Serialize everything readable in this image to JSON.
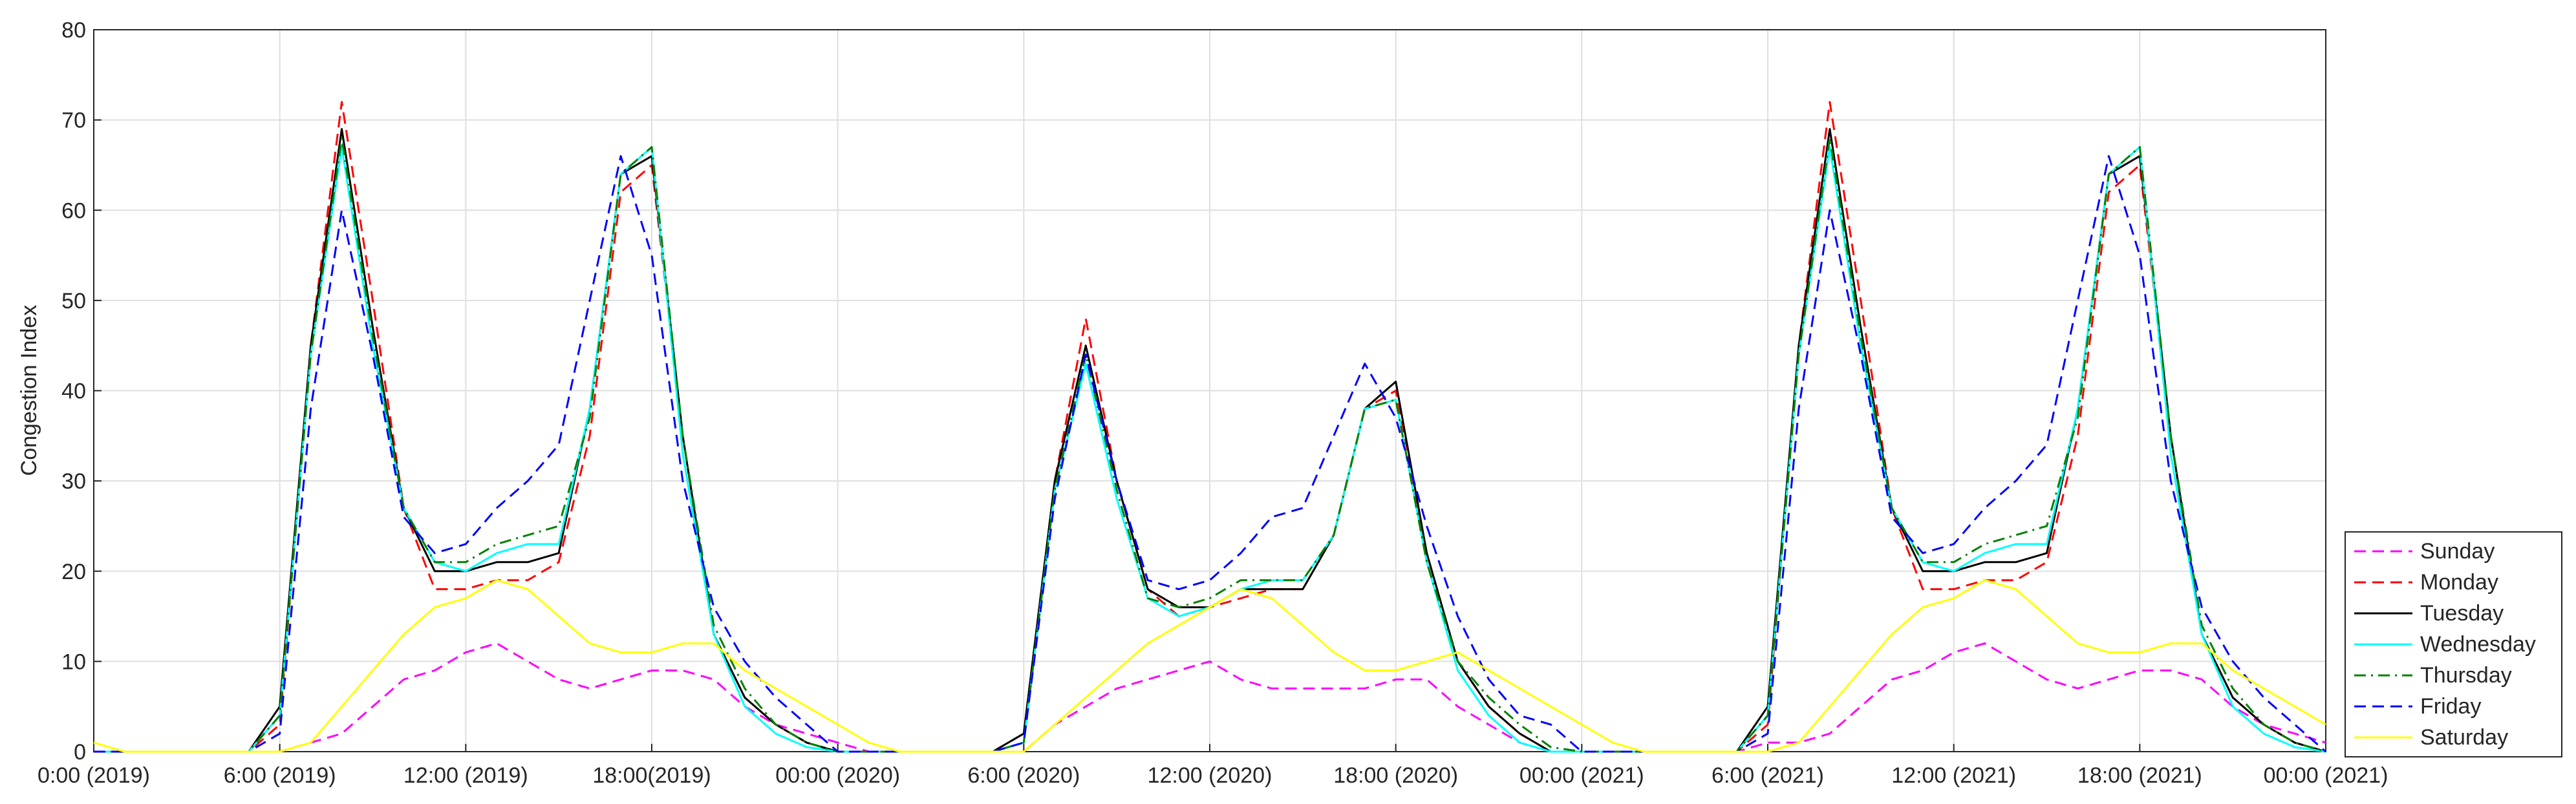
{
  "chart_data": {
    "type": "line",
    "ylabel": "Congestion Index",
    "x": [
      0,
      1,
      2,
      3,
      4,
      5,
      6,
      7,
      8,
      9,
      10,
      11,
      12,
      13,
      14,
      15,
      16,
      17,
      18,
      19,
      20,
      21,
      22,
      23,
      24,
      25,
      26,
      27,
      28,
      29,
      30,
      31,
      32,
      33,
      34,
      35,
      36,
      37,
      38,
      39,
      40,
      41,
      42,
      43,
      44,
      45,
      46,
      47,
      48,
      49,
      50,
      51,
      52,
      53,
      54,
      55,
      56,
      57,
      58,
      59,
      60,
      61,
      62,
      63,
      64,
      65,
      66,
      67,
      68,
      69,
      70,
      71,
      72
    ],
    "xlim": [
      0,
      72
    ],
    "xticks": [
      {
        "value": 0,
        "label": "0:00 (2019)"
      },
      {
        "value": 6,
        "label": "6:00 (2019)"
      },
      {
        "value": 12,
        "label": "12:00 (2019)"
      },
      {
        "value": 18,
        "label": "18:00(2019)"
      },
      {
        "value": 24,
        "label": "00:00 (2020)"
      },
      {
        "value": 30,
        "label": "6:00 (2020)"
      },
      {
        "value": 36,
        "label": "12:00 (2020)"
      },
      {
        "value": 42,
        "label": "18:00 (2020)"
      },
      {
        "value": 48,
        "label": "00:00 (2021)"
      },
      {
        "value": 54,
        "label": "6:00 (2021)"
      },
      {
        "value": 60,
        "label": "12:00 (2021)"
      },
      {
        "value": 66,
        "label": "18:00 (2021)"
      },
      {
        "value": 72,
        "label": "00:00 (2021)"
      }
    ],
    "ylim": [
      0,
      80
    ],
    "yticks": [
      0,
      10,
      20,
      30,
      40,
      50,
      60,
      70,
      80
    ],
    "grid": true,
    "legend": "lower right outside",
    "series": [
      {
        "name": "Sunday",
        "color": "#ff00ff",
        "linestyle": "dashed",
        "values": [
          0,
          0,
          0,
          0,
          0,
          0,
          0,
          1,
          2,
          5,
          8,
          9,
          11,
          12,
          10,
          8,
          7,
          8,
          9,
          9,
          8,
          5,
          3,
          2,
          1,
          0,
          0,
          0,
          0,
          0,
          0,
          3,
          5,
          7,
          8,
          9,
          10,
          8,
          7,
          7,
          7,
          7,
          8,
          8,
          5,
          3,
          1,
          0,
          0,
          0,
          0,
          0,
          0,
          0,
          1,
          1,
          2,
          5,
          8,
          9,
          11,
          12,
          10,
          8,
          7,
          8,
          9,
          9,
          8,
          5,
          3,
          2,
          1
        ]
      },
      {
        "name": "Monday",
        "color": "#ff0000",
        "linestyle": "dashed",
        "values": [
          0,
          0,
          0,
          0,
          0,
          0,
          3,
          45,
          72,
          50,
          27,
          18,
          18,
          19,
          19,
          21,
          35,
          62,
          65,
          35,
          13,
          6,
          3,
          1,
          0,
          0,
          0,
          0,
          0,
          0,
          2,
          30,
          48,
          30,
          18,
          15,
          16,
          17,
          18,
          18,
          24,
          38,
          40,
          22,
          10,
          5,
          2,
          0,
          0,
          0,
          0,
          0,
          0,
          0,
          3,
          45,
          72,
          50,
          27,
          18,
          18,
          19,
          19,
          21,
          35,
          62,
          65,
          35,
          13,
          6,
          3,
          1,
          0
        ]
      },
      {
        "name": "Tuesday",
        "color": "#000000",
        "linestyle": "solid",
        "values": [
          0,
          0,
          0,
          0,
          0,
          0,
          5,
          45,
          69,
          47,
          27,
          20,
          20,
          21,
          21,
          22,
          38,
          64,
          66,
          35,
          13,
          6,
          3,
          1,
          0,
          0,
          0,
          0,
          0,
          0,
          2,
          30,
          45,
          30,
          18,
          16,
          16,
          18,
          18,
          18,
          24,
          38,
          41,
          22,
          10,
          5,
          2,
          0,
          0,
          0,
          0,
          0,
          0,
          0,
          5,
          45,
          69,
          47,
          27,
          20,
          20,
          21,
          21,
          22,
          38,
          64,
          66,
          35,
          13,
          6,
          3,
          1,
          0
        ]
      },
      {
        "name": "Wednesday",
        "color": "#00ffff",
        "linestyle": "solid",
        "values": [
          0,
          0,
          0,
          0,
          0,
          0,
          4,
          44,
          67,
          45,
          27,
          21,
          20,
          22,
          23,
          23,
          38,
          64,
          67,
          33,
          13,
          5,
          2,
          0.5,
          0,
          0,
          0,
          0,
          0,
          0,
          1,
          29,
          43,
          28,
          17,
          15,
          16,
          18,
          19,
          19,
          24,
          38,
          39,
          21,
          9,
          4,
          1,
          0,
          0,
          0,
          0,
          0,
          0,
          0,
          4,
          44,
          67,
          45,
          27,
          21,
          20,
          22,
          23,
          23,
          38,
          64,
          67,
          33,
          13,
          5,
          2,
          0.5,
          0
        ]
      },
      {
        "name": "Thursday",
        "color": "#008000",
        "linestyle": "dashdot",
        "values": [
          0,
          0,
          0,
          0,
          0,
          0,
          4,
          44,
          68,
          46,
          27,
          21,
          21,
          23,
          24,
          25,
          37,
          64,
          67,
          35,
          14,
          7,
          3,
          1,
          0,
          0,
          0,
          0,
          0,
          0,
          1,
          29,
          44,
          29,
          17,
          16,
          17,
          19,
          19,
          19,
          24,
          38,
          39,
          21,
          10,
          6,
          3,
          0.5,
          0,
          0,
          0,
          0,
          0,
          0,
          4,
          44,
          68,
          46,
          27,
          21,
          21,
          23,
          24,
          25,
          37,
          64,
          67,
          35,
          14,
          7,
          3,
          1,
          0
        ]
      },
      {
        "name": "Friday",
        "color": "#0000ff",
        "linestyle": "dashed",
        "values": [
          0,
          0,
          0,
          0,
          0,
          0,
          2,
          38,
          60,
          44,
          26,
          22,
          23,
          27,
          30,
          34,
          50,
          66,
          55,
          30,
          16,
          10,
          6,
          3,
          0,
          0,
          0,
          0,
          0,
          0,
          1,
          28,
          44,
          30,
          19,
          18,
          19,
          22,
          26,
          27,
          35,
          43,
          37,
          25,
          15,
          8,
          4,
          3,
          0,
          0,
          0,
          0,
          0,
          0,
          2,
          38,
          60,
          44,
          26,
          22,
          23,
          27,
          30,
          34,
          50,
          66,
          55,
          30,
          16,
          10,
          6,
          3,
          0
        ]
      },
      {
        "name": "Saturday",
        "color": "#ffff00",
        "linestyle": "solid",
        "values": [
          1,
          0,
          0,
          0,
          0,
          0,
          0,
          1,
          5,
          9,
          13,
          16,
          17,
          19,
          18,
          15,
          12,
          11,
          11,
          12,
          12,
          9,
          7,
          5,
          3,
          1,
          0,
          0,
          0,
          0,
          0,
          3,
          6,
          9,
          12,
          14,
          16,
          18,
          17,
          14,
          11,
          9,
          9,
          10,
          11,
          9,
          7,
          5,
          3,
          1,
          0,
          0,
          0,
          0,
          0,
          1,
          5,
          9,
          13,
          16,
          17,
          19,
          18,
          15,
          12,
          11,
          11,
          12,
          12,
          9,
          7,
          5,
          3
        ]
      }
    ]
  }
}
